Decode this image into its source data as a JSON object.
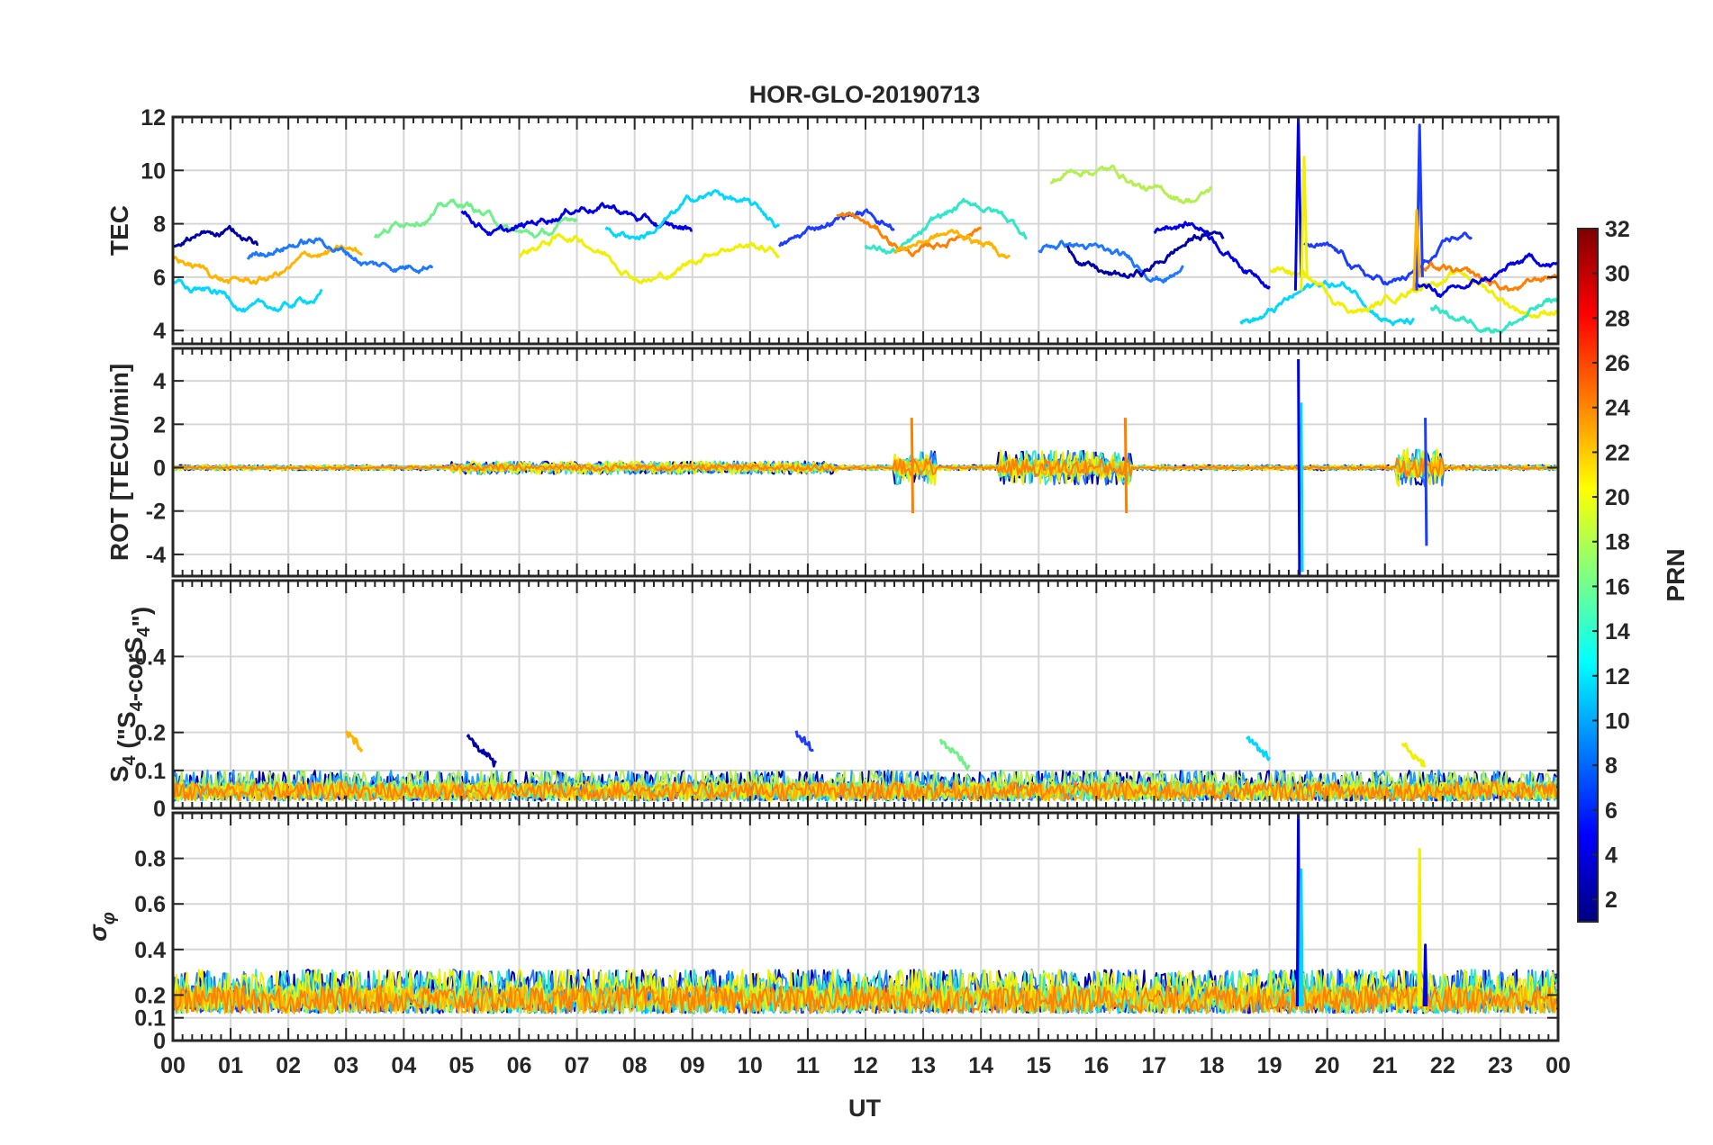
{
  "chart_data": {
    "type": "line",
    "title": "HOR-GLO-20190713",
    "xlabel": "UT",
    "x_ticks": [
      "00",
      "01",
      "02",
      "03",
      "04",
      "05",
      "06",
      "07",
      "08",
      "09",
      "10",
      "11",
      "12",
      "13",
      "14",
      "15",
      "16",
      "17",
      "18",
      "19",
      "20",
      "21",
      "22",
      "23",
      "00"
    ],
    "xlim_hours": [
      0,
      24
    ],
    "grid": true,
    "panels": [
      {
        "id": "tec",
        "ylabel": "TEC",
        "ylim": [
          3.5,
          12
        ],
        "yticks": [
          4,
          6,
          8,
          10,
          12
        ],
        "ytick_labels": [
          "4",
          "6",
          "8",
          "10",
          "12"
        ],
        "approx_summary": "most arcs 5-9 TECU; enhancements near 16-18 UT up to ~10; spikes near 19.5 UT (~12) and 21.6 UT (~11.7)"
      },
      {
        "id": "rot",
        "ylabel": "ROT [TECU/min]",
        "ylim": [
          -5,
          5.5
        ],
        "yticks": [
          -4,
          -2,
          0,
          2,
          4
        ],
        "ytick_labels": [
          "-4",
          "-2",
          "0",
          "2",
          "4"
        ],
        "approx_summary": "near 0 most of the day; bursts +/-2 near 12.8 and 14.5-16.5 UT; large +/-5 spike near 19.5 UT; +/-3 near 21.6 UT"
      },
      {
        "id": "s4",
        "ylabel_main": "S",
        "ylabel_sub1": "4",
        "ylabel_mid": " (\"S",
        "ylabel_sub2": "4",
        "ylabel_mid2": "-corS",
        "ylabel_sub3": "4",
        "ylabel_tail": "\")",
        "ylim": [
          0,
          0.6
        ],
        "yticks": [
          0,
          0.1,
          0.2,
          0.4
        ],
        "ytick_labels": [
          "0",
          "0.1",
          "0.2",
          "0.4"
        ],
        "approx_summary": "mostly 0-0.1; arcs reaching 0.15-0.2 near 3.2, 5.1, 11, 13.3, 19 and 21.4 UT"
      },
      {
        "id": "sigma_phi",
        "ylabel_main": "σ",
        "ylabel_sub": "φ",
        "ylim": [
          0,
          1.0
        ],
        "yticks": [
          0,
          0.1,
          0.2,
          0.4,
          0.6,
          0.8
        ],
        "ytick_labels": [
          "0",
          "0.1",
          "0.2",
          "0.4",
          "0.6",
          "0.8"
        ],
        "approx_summary": "mostly 0.1-0.3; peak ~1.0 near 19.5 UT and ~0.85 near 21.6 UT"
      }
    ],
    "colorbar": {
      "label": "PRN",
      "range": [
        1,
        32
      ],
      "tick_labels": [
        "2",
        "4",
        "6",
        "8",
        "10",
        "12",
        "14",
        "16",
        "18",
        "20",
        "22",
        "24",
        "26",
        "28",
        "30",
        "32"
      ],
      "colormap": [
        "#00007f",
        "#0000ff",
        "#007fff",
        "#00ffff",
        "#7fff7f",
        "#ffff00",
        "#ff7f00",
        "#ff0000",
        "#7f0000"
      ]
    },
    "series": [
      {
        "prn": 2,
        "color": "#0000a6"
      },
      {
        "prn": 4,
        "color": "#0000e6"
      },
      {
        "prn": 6,
        "color": "#1c3cff"
      },
      {
        "prn": 8,
        "color": "#1e78ff"
      },
      {
        "prn": 10,
        "color": "#1ea0ff"
      },
      {
        "prn": 12,
        "color": "#00d8ff"
      },
      {
        "prn": 14,
        "color": "#2ee8c8"
      },
      {
        "prn": 16,
        "color": "#70f08a"
      },
      {
        "prn": 18,
        "color": "#b4f050"
      },
      {
        "prn": 20,
        "color": "#f0f000"
      },
      {
        "prn": 22,
        "color": "#ffb400"
      },
      {
        "prn": 24,
        "color": "#ff8000"
      }
    ]
  }
}
